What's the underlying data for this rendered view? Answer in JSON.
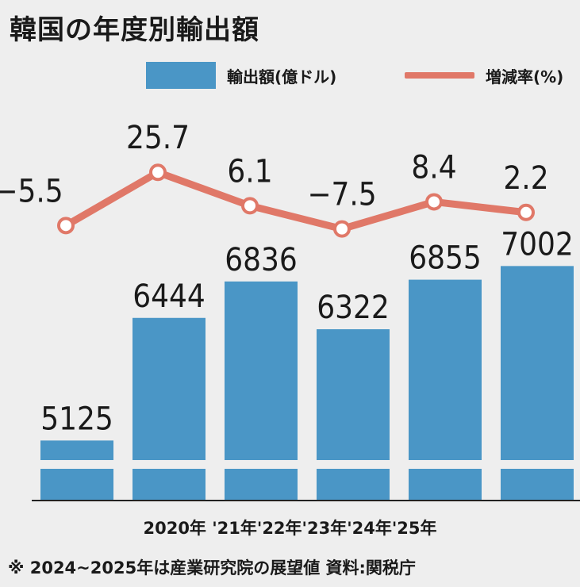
{
  "title": "韓国の年度別輸出額",
  "legend": {
    "bar_label": "輸出額(億ドル)",
    "line_label": "増減率(%)"
  },
  "x_axis_text": "2020年 '21年'22年'23年'24年'25年",
  "footnote": "※ 2024~2025年は産業研究院の展望値 資料:関税庁",
  "colors": {
    "bar": "#4a96c6",
    "line": "#e07868",
    "background": "#eeeeee"
  },
  "chart_data": {
    "type": "bar",
    "categories": [
      "2020年",
      "'21年",
      "'22年",
      "'23年",
      "'24年",
      "'25年"
    ],
    "series": [
      {
        "name": "輸出額(億ドル)",
        "type": "bar",
        "values": [
          5125,
          6444,
          6836,
          6322,
          6855,
          7002
        ],
        "labels": [
          "5125",
          "6444",
          "6836",
          "6322",
          "6855",
          "7002"
        ]
      },
      {
        "name": "増減率(%)",
        "type": "line",
        "values": [
          -5.5,
          25.7,
          6.1,
          -7.5,
          8.4,
          2.2
        ],
        "labels": [
          "−5.5",
          "25.7",
          "6.1",
          "−7.5",
          "8.4",
          "2.2"
        ]
      }
    ],
    "legend_position": "top-right",
    "grid": false
  }
}
